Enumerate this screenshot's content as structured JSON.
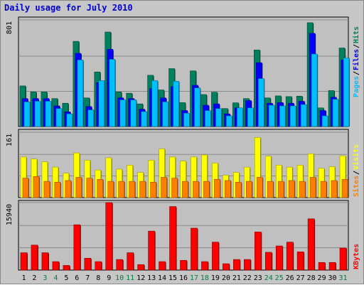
{
  "chart_data": [
    {
      "type": "bar",
      "title": "Daily usage for July 2010",
      "categories": [
        "1",
        "2",
        "3",
        "4",
        "5",
        "6",
        "7",
        "8",
        "9",
        "10",
        "11",
        "12",
        "13",
        "14",
        "15",
        "16",
        "17",
        "18",
        "19",
        "20",
        "21",
        "22",
        "23",
        "24",
        "25",
        "26",
        "27",
        "28",
        "29",
        "30",
        "31"
      ],
      "weekend_days": [
        "3",
        "4",
        "10",
        "11",
        "17",
        "18",
        "24",
        "25",
        "31"
      ],
      "ytick_label": "801",
      "ylim": [
        0,
        801
      ],
      "series": [
        {
          "name": "Hits",
          "color": "#00805f",
          "values": [
            305,
            260,
            260,
            210,
            175,
            640,
            215,
            410,
            710,
            260,
            250,
            170,
            385,
            275,
            435,
            180,
            418,
            240,
            258,
            135,
            178,
            210,
            575,
            215,
            230,
            225,
            228,
            780,
            140,
            270,
            590
          ]
        },
        {
          "name": "Files",
          "color": "#0000ff",
          "values": [
            210,
            210,
            210,
            155,
            110,
            550,
            150,
            330,
            580,
            215,
            210,
            130,
            285,
            215,
            300,
            120,
            310,
            160,
            170,
            95,
            140,
            195,
            480,
            175,
            180,
            175,
            190,
            700,
            120,
            220,
            500
          ]
        },
        {
          "name": "Pages",
          "color": "#00bfff",
          "values": [
            185,
            190,
            190,
            135,
            95,
            500,
            125,
            345,
            505,
            200,
            200,
            112,
            345,
            185,
            340,
            100,
            290,
            120,
            135,
            80,
            140,
            140,
            360,
            160,
            155,
            155,
            165,
            545,
            80,
            205,
            515
          ]
        }
      ],
      "legend_position": "right-vertical"
    },
    {
      "type": "bar",
      "ytick_label": "161",
      "ylim": [
        0,
        161
      ],
      "series": [
        {
          "name": "Visits",
          "color": "#ffff00",
          "values": [
            100,
            95,
            88,
            75,
            60,
            110,
            92,
            68,
            98,
            70,
            80,
            62,
            92,
            120,
            100,
            90,
            100,
            105,
            85,
            55,
            62,
            75,
            148,
            102,
            80,
            75,
            80,
            108,
            72,
            76,
            103
          ]
        },
        {
          "name": "Sites",
          "color": "#ff8000",
          "values": [
            48,
            52,
            40,
            38,
            42,
            50,
            48,
            45,
            40,
            40,
            40,
            40,
            38,
            50,
            48,
            40,
            40,
            40,
            45,
            42,
            38,
            40,
            50,
            40,
            40,
            42,
            40,
            50,
            40,
            42,
            45
          ]
        }
      ]
    },
    {
      "type": "bar",
      "ytick_label": "15940",
      "ylim": [
        0,
        15940
      ],
      "series": [
        {
          "name": "KBytes",
          "color": "#ff0000",
          "values": [
            4100,
            5900,
            4100,
            2000,
            1100,
            10700,
            2800,
            2000,
            15940,
            2500,
            4100,
            1300,
            9200,
            2000,
            15000,
            2300,
            9900,
            2000,
            6600,
            1500,
            2500,
            2500,
            9000,
            4200,
            5700,
            6600,
            4300,
            12100,
            1800,
            1800,
            5200
          ]
        }
      ]
    }
  ]
}
